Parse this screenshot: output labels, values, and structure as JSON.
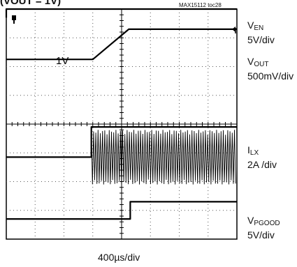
{
  "header": {
    "title_fragment": "(VOUT = 1V)",
    "figure_tag": "MAX15112 toc28"
  },
  "channels": [
    {
      "name_main": "V",
      "name_sub": "EN",
      "scale": "5V/div"
    },
    {
      "name_main": "V",
      "name_sub": "OUT",
      "scale": "500mV/div"
    },
    {
      "name_main": "I",
      "name_sub": "LX",
      "scale": "2A /div"
    },
    {
      "name_main": "V",
      "name_sub": "PGOOD",
      "scale": "5V/div"
    }
  ],
  "annotation": "1V",
  "timebase": "400µs/div",
  "colors": {
    "trace": "#000000",
    "grid": "#555555",
    "background": "#ffffff"
  },
  "chart_data": {
    "type": "line",
    "grid": {
      "h_divisions": 8,
      "v_divisions": 8,
      "dotted": true
    },
    "x_unit": "div",
    "xlim": [
      0,
      8
    ],
    "series": [
      {
        "name": "VEN",
        "points": [
          [
            0,
            0.3
          ],
          [
            0,
            0.0
          ],
          [
            8,
            0.0
          ]
        ]
      },
      {
        "name": "VOUT",
        "points": [
          [
            0,
            1.75
          ],
          [
            3.0,
            1.75
          ],
          [
            4.25,
            0.7
          ],
          [
            8,
            0.7
          ]
        ]
      },
      {
        "name": "ILX",
        "points": [
          [
            0,
            5.15
          ],
          [
            2.95,
            5.15
          ],
          [
            2.95,
            4.1
          ],
          [
            8,
            4.1
          ]
        ],
        "switching": {
          "start": 2.95,
          "center": 5.15,
          "amplitude": 0.95
        }
      },
      {
        "name": "VPGOOD",
        "points": [
          [
            0,
            7.3
          ],
          [
            4.3,
            7.3
          ],
          [
            4.3,
            6.7
          ],
          [
            8,
            6.7
          ]
        ]
      }
    ]
  }
}
